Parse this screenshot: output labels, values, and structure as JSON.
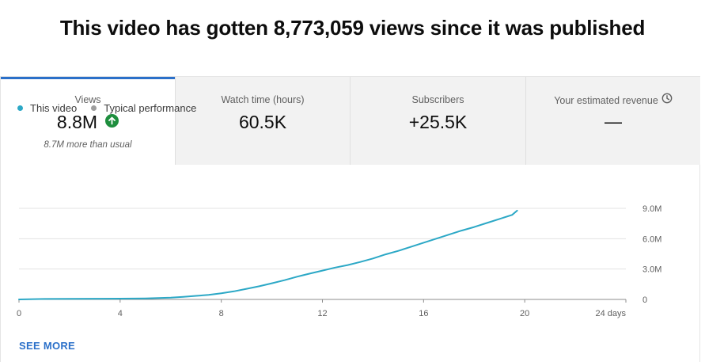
{
  "headline": "This video has gotten 8,773,059 views since it was published",
  "tabs": [
    {
      "label": "Views",
      "value": "8.8M",
      "sub": "8.7M more than usual",
      "icon": "arrow-up-icon",
      "active": true
    },
    {
      "label": "Watch time (hours)",
      "value": "60.5K"
    },
    {
      "label": "Subscribers",
      "value": "+25.5K"
    },
    {
      "label": "Your estimated revenue",
      "value": "—",
      "icon": "clock-icon"
    }
  ],
  "legend": [
    {
      "label": "This video",
      "color": "#2ca8c6"
    },
    {
      "label": "Typical performance",
      "color": "#9e9e9e"
    }
  ],
  "see_more": "SEE MORE",
  "colors": {
    "accent": "#2b70c9",
    "up": "#1e8e3e",
    "line": "#2ca8c6"
  },
  "chart_data": {
    "type": "line",
    "x_unit": "days",
    "xlim": [
      0,
      24
    ],
    "ylim": [
      0,
      9000000
    ],
    "x_ticks": [
      "0",
      "4",
      "8",
      "12",
      "16",
      "20",
      "24 days"
    ],
    "x_tick_values": [
      0,
      4,
      8,
      12,
      16,
      20,
      24
    ],
    "y_ticks": [
      "0",
      "3.0M",
      "6.0M",
      "9.0M"
    ],
    "y_tick_values": [
      0,
      3000000,
      6000000,
      9000000
    ],
    "grid": true,
    "legend_position": "top-left",
    "series": [
      {
        "name": "This video",
        "x": [
          0,
          1,
          2,
          3,
          4,
          5,
          5.5,
          6,
          6.5,
          7,
          7.5,
          8,
          8.5,
          9,
          9.5,
          10,
          10.5,
          11,
          11.5,
          12,
          12.5,
          13,
          13.5,
          14,
          14.5,
          15,
          15.5,
          16,
          16.5,
          17,
          17.5,
          18,
          18.5,
          19,
          19.5,
          19.7
        ],
        "y": [
          0,
          50000,
          60000,
          70000,
          80000,
          100000,
          130000,
          170000,
          250000,
          350000,
          450000,
          600000,
          800000,
          1050000,
          1300000,
          1600000,
          1900000,
          2250000,
          2550000,
          2850000,
          3150000,
          3400000,
          3700000,
          4050000,
          4450000,
          4800000,
          5200000,
          5600000,
          6000000,
          6400000,
          6800000,
          7150000,
          7550000,
          7950000,
          8350000,
          8770000
        ]
      }
    ]
  }
}
